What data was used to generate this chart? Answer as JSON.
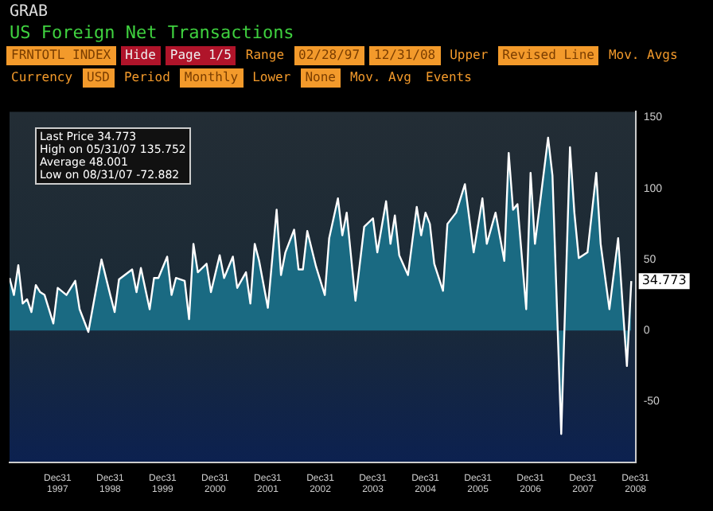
{
  "chart_data": {
    "type": "area",
    "title": "US Foreign Net Transactions",
    "x": [
      "1997-02",
      "1997-03",
      "1997-04",
      "1997-05",
      "1997-06",
      "1997-07",
      "1997-08",
      "1997-09",
      "1997-10",
      "1997-12",
      "1998-01",
      "1998-03",
      "1998-05",
      "1998-06",
      "1998-08",
      "1998-11",
      "1999-01",
      "1999-02",
      "1999-03",
      "1999-06",
      "1999-07",
      "1999-08",
      "1999-10",
      "1999-11",
      "1999-12",
      "2000-02",
      "2000-03",
      "2000-04",
      "2000-06",
      "2000-07",
      "2000-08",
      "2000-09",
      "2000-11",
      "2000-12",
      "2001-02",
      "2001-03",
      "2001-05",
      "2001-06",
      "2001-08",
      "2001-09",
      "2001-10",
      "2001-11",
      "2002-01",
      "2002-03",
      "2002-04",
      "2002-05",
      "2002-07",
      "2002-08",
      "2002-09",
      "2002-10",
      "2002-12",
      "2003-02",
      "2003-03",
      "2003-05",
      "2003-06",
      "2003-07",
      "2003-09",
      "2003-11",
      "2004-01",
      "2004-02",
      "2004-04",
      "2004-05",
      "2004-06",
      "2004-07",
      "2004-09",
      "2004-11",
      "2004-12",
      "2005-01",
      "2005-02",
      "2005-03",
      "2005-05",
      "2005-06",
      "2005-08",
      "2005-10",
      "2005-12",
      "2006-02",
      "2006-03",
      "2006-05",
      "2006-07",
      "2006-08",
      "2006-09",
      "2006-10",
      "2006-12",
      "2007-01",
      "2007-02",
      "2007-05",
      "2007-06",
      "2007-08",
      "2007-10",
      "2007-11",
      "2007-12",
      "2008-02",
      "2008-04",
      "2008-05",
      "2008-07",
      "2008-09",
      "2008-10",
      "2008-11",
      "2008-12"
    ],
    "series": [
      {
        "color": "#1a6a82",
        "values": [
          37,
          25,
          46,
          19,
          22,
          13,
          32,
          27,
          25,
          5,
          30,
          25,
          35,
          15,
          -1,
          50,
          25,
          13,
          36,
          43,
          27,
          44,
          15,
          37,
          37,
          52,
          25,
          37,
          35,
          8,
          61,
          41,
          47,
          27,
          53,
          37,
          52,
          30,
          41,
          19,
          61,
          49,
          16,
          85,
          39,
          55,
          71,
          43,
          43,
          70,
          45,
          25,
          65,
          93,
          67,
          83,
          21,
          73,
          79,
          55,
          91,
          61,
          81,
          53,
          39,
          87,
          67,
          83,
          75,
          47,
          28,
          75,
          83,
          103,
          55,
          93,
          61,
          83,
          49,
          125,
          85,
          89,
          15,
          111,
          61,
          135.752,
          109,
          -72.882,
          129,
          83,
          51,
          55,
          111,
          61,
          15,
          65,
          19,
          -25,
          34.773
        ]
      }
    ],
    "xlim": [
      "1997-02",
      "2008-12-31"
    ],
    "xticks": [
      {
        "value": "1997-12-31",
        "label": "Dec31\n1997"
      },
      {
        "value": "1998-12-31",
        "label": "Dec31\n1998"
      },
      {
        "value": "1999-12-31",
        "label": "Dec31\n1999"
      },
      {
        "value": "2000-12-31",
        "label": "Dec31\n2000"
      },
      {
        "value": "2001-12-31",
        "label": "Dec31\n2001"
      },
      {
        "value": "2002-12-31",
        "label": "Dec31\n2002"
      },
      {
        "value": "2003-12-31",
        "label": "Dec31\n2003"
      },
      {
        "value": "2004-12-31",
        "label": "Dec31\n2004"
      },
      {
        "value": "2005-12-31",
        "label": "Dec31\n2005"
      },
      {
        "value": "2006-12-31",
        "label": "Dec31\n2006"
      },
      {
        "value": "2007-12-31",
        "label": "Dec31\n2007"
      },
      {
        "value": "2008-12-31",
        "label": "Dec31\n2008"
      }
    ],
    "ylim": [
      -93,
      154
    ],
    "yticks": [
      -50,
      0,
      50,
      100,
      150
    ],
    "grid": false,
    "legend": false,
    "marker": "none",
    "line_style": "solid",
    "annotations": [
      "Last Price 34.773",
      "High on 05/31/07 135.752",
      "Average 48.001",
      "Low on 08/31/07 -72.882",
      {
        "text": "34.773",
        "x": "2008-12",
        "y": 34.773
      },
      "GRAB",
      "FRNTOTL INDEX",
      "Hide",
      "Page 1/5",
      "Range",
      "02/28/97",
      "12/31/08",
      "Upper",
      "Revised Line",
      "Mov. Avgs",
      "Currency",
      "USD",
      "Period",
      "Monthly",
      "Lower",
      "None",
      "Mov. Avg",
      "Events"
    ]
  }
}
